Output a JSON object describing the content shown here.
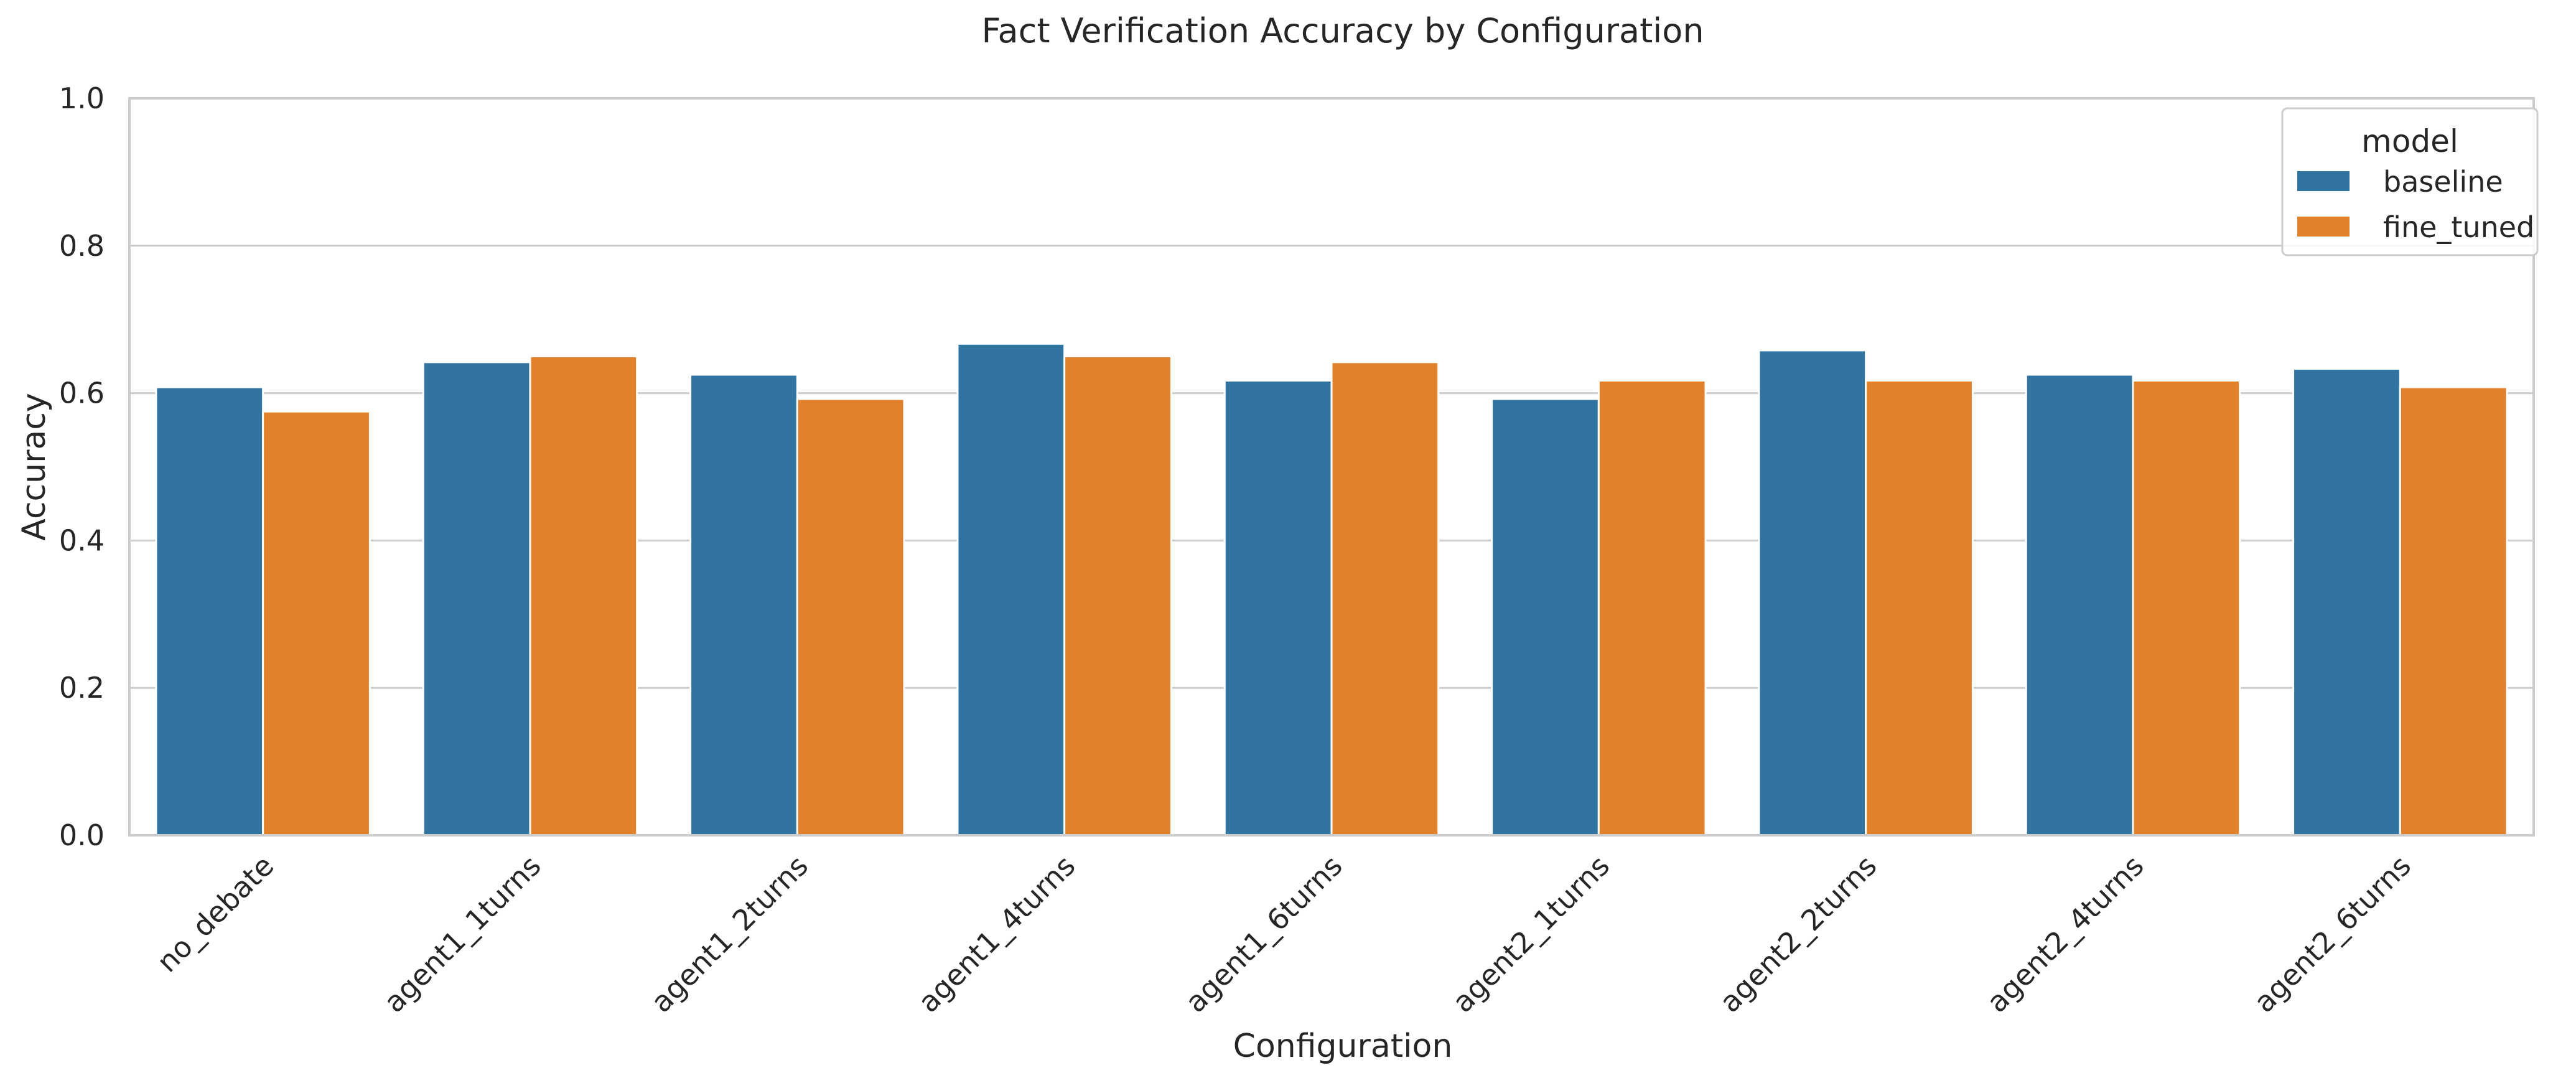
{
  "chart_data": {
    "type": "bar",
    "title": "Fact Verification Accuracy by Configuration",
    "xlabel": "Configuration",
    "ylabel": "Accuracy",
    "ylim": [
      0,
      1.0
    ],
    "yticks": [
      "0.0",
      "0.2",
      "0.4",
      "0.6",
      "0.8",
      "1.0"
    ],
    "grid": "horizontal",
    "legend": {
      "title": "model",
      "placement": "top-right"
    },
    "categories": [
      "no_debate",
      "agent1_1turns",
      "agent1_2turns",
      "agent1_4turns",
      "agent1_6turns",
      "agent2_1turns",
      "agent2_2turns",
      "agent2_4turns",
      "agent2_6turns"
    ],
    "series": [
      {
        "name": "baseline",
        "color": "#3274a1",
        "values": [
          0.608,
          0.642,
          0.625,
          0.667,
          0.617,
          0.592,
          0.658,
          0.625,
          0.633
        ]
      },
      {
        "name": "fine_tuned",
        "color": "#e1812c",
        "values": [
          0.575,
          0.65,
          0.592,
          0.65,
          0.642,
          0.617,
          0.617,
          0.617,
          0.608
        ]
      }
    ]
  }
}
